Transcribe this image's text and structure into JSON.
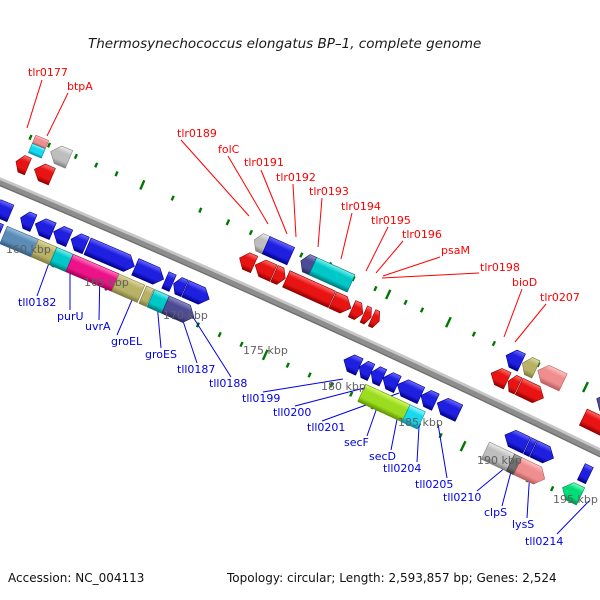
{
  "title": "Thermosynechococcus elongatus BP–1, complete genome",
  "footer": {
    "accession": "Accession: NC_004113",
    "stats": "Topology: circular; Length: 2,593,857 bp; Genes: 2,524"
  },
  "track": {
    "backbone_light": "#c6c6c6",
    "backbone_main": "#8d8d8d",
    "backbone_dark": "#6e6e6e",
    "tick_color": "#007800"
  },
  "colors": {
    "blue": {
      "light": "#6b6bff",
      "base": "#1f1fe0",
      "dark": "#000088"
    },
    "red": {
      "light": "#ff7070",
      "base": "#e81414",
      "dark": "#8f0000"
    },
    "cyan": {
      "light": "#7df2f2",
      "base": "#00c8c8",
      "dark": "#007878"
    },
    "aqua": {
      "light": "#9afaff",
      "base": "#18d8ee",
      "dark": "#0090a8"
    },
    "steelblue": {
      "light": "#9cc0dc",
      "base": "#5b8cb8",
      "dark": "#2f5c86"
    },
    "khaki": {
      "light": "#ded9a0",
      "base": "#b8b266",
      "dark": "#7f7a40"
    },
    "deeppink": {
      "light": "#ff7cc2",
      "base": "#ee1289",
      "dark": "#9c0055"
    },
    "chartreuse": {
      "light": "#d4f96a",
      "base": "#9cdc20",
      "dark": "#5d9400"
    },
    "silver": {
      "light": "#ececec",
      "base": "#bebebe",
      "dark": "#808080"
    },
    "darkslate": {
      "light": "#9090c8",
      "base": "#4c4c96",
      "dark": "#28285e"
    },
    "salmon": {
      "light": "#ffc4c4",
      "base": "#ef8e8e",
      "dark": "#b85c5c"
    },
    "springgreen": {
      "light": "#7dffc4",
      "base": "#00dc78",
      "dark": "#009048"
    },
    "darkgray": {
      "light": "#a8a8a8",
      "base": "#6e6e6e",
      "dark": "#3c3c3c"
    }
  },
  "rows": {
    "f1": [
      -34,
      -16
    ],
    "f2": [
      -57,
      -38
    ],
    "r1": [
      16,
      34
    ],
    "r2": [
      38,
      57
    ]
  },
  "genes": [
    [
      "f1",
      "red",
      7,
      13,
      "L"
    ],
    [
      "f1",
      "red",
      27,
      19,
      "L"
    ],
    [
      "c",
      "salmon",
      15,
      14,
      "",
      [
        -57,
        -48
      ]
    ],
    [
      "c",
      "aqua",
      15,
      14,
      "",
      [
        -48,
        -38
      ]
    ],
    [
      "f2",
      "silver",
      35,
      20,
      "L"
    ],
    [
      "f2",
      "silver",
      256,
      13,
      "L"
    ],
    [
      "f2",
      "blue",
      269,
      27,
      ""
    ],
    [
      "f2",
      "darkslate",
      307,
      13,
      "L"
    ],
    [
      "f2",
      "cyan",
      320,
      42,
      ""
    ],
    [
      "f1",
      "red",
      250,
      16,
      "L"
    ],
    [
      "f1",
      "red",
      267,
      20,
      "L"
    ],
    [
      "f1",
      "red",
      288,
      12,
      "R"
    ],
    [
      "f1",
      "red",
      301,
      50,
      ""
    ],
    [
      "f1",
      "red",
      352,
      20,
      "R"
    ],
    [
      "f1",
      "red",
      373,
      12,
      "R"
    ],
    [
      "f1",
      "red",
      386,
      8,
      "R"
    ],
    [
      "f1",
      "red",
      395,
      8,
      "R"
    ],
    [
      "f1",
      "red",
      526,
      18,
      "L"
    ],
    [
      "f1",
      "red",
      545,
      11,
      "L"
    ],
    [
      "f1",
      "red",
      557,
      27,
      "R"
    ],
    [
      "f2",
      "blue",
      532,
      17,
      "L"
    ],
    [
      "f2",
      "khaki",
      550,
      15,
      "L"
    ],
    [
      "f2",
      "salmon",
      567,
      28,
      "L"
    ],
    [
      "f1",
      "red",
      628,
      40,
      ""
    ],
    [
      "f2",
      "darkslate",
      632,
      30,
      "L"
    ],
    [
      "r1",
      "blue",
      0,
      22,
      "L"
    ],
    [
      "r1",
      "blue",
      33,
      14,
      "L"
    ],
    [
      "r1",
      "blue",
      49,
      19,
      "L"
    ],
    [
      "r1",
      "blue",
      69,
      17,
      "L"
    ],
    [
      "r1",
      "blue",
      88,
      16,
      "L"
    ],
    [
      "r1",
      "blue",
      106,
      51,
      "R"
    ],
    [
      "r1",
      "blue",
      158,
      31,
      "R"
    ],
    [
      "r1",
      "blue",
      191,
      8,
      ""
    ],
    [
      "r1",
      "blue",
      200,
      12,
      "L"
    ],
    [
      "r1",
      "blue",
      213,
      26,
      "R"
    ],
    [
      "r2",
      "blue",
      0,
      20,
      "L"
    ],
    [
      "r2",
      "steelblue",
      24,
      34,
      ""
    ],
    [
      "r2",
      "khaki",
      58,
      20,
      ""
    ],
    [
      "r2",
      "cyan",
      78,
      18,
      ""
    ],
    [
      "r2",
      "deeppink",
      96,
      50,
      ""
    ],
    [
      "r2",
      "khaki",
      146,
      28,
      ""
    ],
    [
      "r2",
      "khaki",
      176,
      8,
      ""
    ],
    [
      "r2",
      "cyan",
      185,
      16,
      ""
    ],
    [
      "r2",
      "darkslate",
      201,
      31,
      "R"
    ],
    [
      "r1",
      "blue",
      387,
      17,
      "L"
    ],
    [
      "r1",
      "blue",
      404,
      13,
      "L"
    ],
    [
      "r1",
      "blue",
      417,
      13,
      "L"
    ],
    [
      "r1",
      "blue",
      430,
      16,
      "L"
    ],
    [
      "r1",
      "blue",
      446,
      26,
      "L"
    ],
    [
      "r1",
      "blue",
      472,
      16,
      "L"
    ],
    [
      "r1",
      "blue",
      490,
      24,
      "L"
    ],
    [
      "r2",
      "chartreuse",
      417,
      49,
      ""
    ],
    [
      "r2",
      "aqua",
      466,
      17,
      ""
    ],
    [
      "r1",
      "blue",
      565,
      24,
      "L"
    ],
    [
      "r1",
      "blue",
      590,
      6,
      ""
    ],
    [
      "r1",
      "blue",
      597,
      22,
      "R"
    ],
    [
      "r1",
      "blue",
      650,
      9,
      ""
    ],
    [
      "r2",
      "silver",
      554,
      28,
      ""
    ],
    [
      "r2",
      "darkgray",
      582,
      8,
      ""
    ],
    [
      "r2",
      "salmon",
      590,
      30,
      "R"
    ],
    [
      "r2",
      "springgreen",
      640,
      20,
      "L"
    ]
  ],
  "ticks": {
    "above": [
      [
        11,
        5
      ],
      [
        31,
        5
      ],
      [
        60,
        5
      ],
      [
        82,
        5
      ],
      [
        104,
        5
      ],
      [
        132,
        10
      ],
      [
        165,
        5
      ],
      [
        195,
        5
      ],
      [
        225,
        6
      ],
      [
        250,
        5
      ],
      [
        278,
        5
      ],
      [
        305,
        5
      ],
      [
        335,
        11
      ],
      [
        362,
        5
      ],
      [
        386,
        5
      ],
      [
        400,
        10
      ],
      [
        419,
        5
      ],
      [
        437,
        5
      ],
      [
        466,
        11
      ],
      [
        494,
        5
      ],
      [
        516,
        5
      ],
      [
        540,
        5
      ],
      [
        565,
        5
      ],
      [
        592,
        5
      ],
      [
        617,
        11
      ],
      [
        642,
        5
      ],
      [
        658,
        5
      ]
    ],
    "below": [
      [
        27,
        5
      ],
      [
        53,
        5
      ],
      [
        82,
        10
      ],
      [
        108,
        5
      ],
      [
        140,
        11
      ],
      [
        167,
        5
      ],
      [
        192,
        5
      ],
      [
        214,
        9
      ],
      [
        239,
        5
      ],
      [
        263,
        5
      ],
      [
        287,
        5
      ],
      [
        313,
        11
      ],
      [
        338,
        5
      ],
      [
        362,
        5
      ],
      [
        386,
        5
      ],
      [
        408,
        5
      ],
      [
        433,
        10
      ],
      [
        459,
        5
      ],
      [
        483,
        5
      ],
      [
        507,
        5
      ],
      [
        532,
        11
      ],
      [
        557,
        5
      ],
      [
        581,
        5
      ],
      [
        605,
        10
      ],
      [
        631,
        5
      ],
      [
        649,
        5
      ]
    ]
  },
  "labels": {
    "forward_color": "#ff0000",
    "reverse_color": "#0000e6",
    "position_color": "#5f5f5f",
    "forward": [
      [
        "tlr0177",
        28,
        67,
        42,
        80,
        27,
        128
      ],
      [
        "btpA",
        67,
        81,
        68,
        93,
        47,
        136
      ],
      [
        "tlr0189",
        177,
        128,
        181,
        140,
        249,
        216
      ],
      [
        "folC",
        218,
        144,
        228,
        156,
        268,
        224
      ],
      [
        "tlr0191",
        244,
        157,
        261,
        170,
        287,
        234
      ],
      [
        "tlr0192",
        276,
        172,
        293,
        184,
        296,
        237
      ],
      [
        "tlr0193",
        309,
        186,
        322,
        198,
        318,
        247
      ],
      [
        "tlr0194",
        341,
        201,
        352,
        213,
        341,
        259
      ],
      [
        "tlr0195",
        371,
        215,
        388,
        227,
        366,
        271
      ],
      [
        "tlr0196",
        402,
        229,
        403,
        241,
        376,
        273
      ],
      [
        "psaM",
        441,
        245,
        440,
        257,
        383,
        276
      ],
      [
        "tlr0198",
        480,
        262,
        479,
        273,
        382,
        278
      ],
      [
        "bioD",
        512,
        277,
        522,
        289,
        504,
        337
      ],
      [
        "tlr0207",
        540,
        292,
        546,
        304,
        515,
        342
      ]
    ],
    "reverse": [
      [
        "tll0182",
        18,
        297,
        37,
        296,
        53,
        252
      ],
      [
        "purU",
        57,
        311,
        70,
        310,
        70,
        261
      ],
      [
        "uvrA",
        85,
        321,
        99,
        320,
        100,
        269
      ],
      [
        "groEL",
        111,
        336,
        117,
        335,
        138,
        286
      ],
      [
        "groES",
        145,
        349,
        161,
        348,
        156,
        292
      ],
      [
        "tll0187",
        177,
        364,
        197,
        363,
        180,
        312
      ],
      [
        "tll0188",
        209,
        378,
        231,
        377,
        193,
        317
      ],
      [
        "tll0199",
        242,
        393,
        263,
        392,
        343,
        379
      ],
      [
        "tll0200",
        273,
        407,
        295,
        406,
        368,
        387
      ],
      [
        "tll0201",
        307,
        422,
        322,
        421,
        399,
        393
      ],
      [
        "secF",
        344,
        437,
        367,
        436,
        380,
        399
      ],
      [
        "secD",
        369,
        451,
        391,
        450,
        400,
        404
      ],
      [
        "tll0204",
        383,
        463,
        417,
        462,
        420,
        409
      ],
      [
        "tll0205",
        415,
        479,
        447,
        478,
        438,
        424
      ],
      [
        "tll0210",
        443,
        492,
        477,
        491,
        512,
        462
      ],
      [
        "clpS",
        484,
        507,
        502,
        506,
        513,
        464
      ],
      [
        "lysS",
        512,
        519,
        527,
        518,
        530,
        469
      ],
      [
        "tll0214",
        525,
        536,
        557,
        534,
        589,
        501
      ]
    ],
    "positions": [
      [
        "160 kbp",
        6,
        244
      ],
      [
        "165 kbp",
        84,
        277
      ],
      [
        "170 kbp",
        163,
        310
      ],
      [
        "175 kbp",
        243,
        345
      ],
      [
        "180 kbp",
        321,
        381
      ],
      [
        "185 kbp",
        398,
        417
      ],
      [
        "190 kbp",
        477,
        455
      ],
      [
        "195 kbp",
        553,
        494
      ]
    ]
  }
}
